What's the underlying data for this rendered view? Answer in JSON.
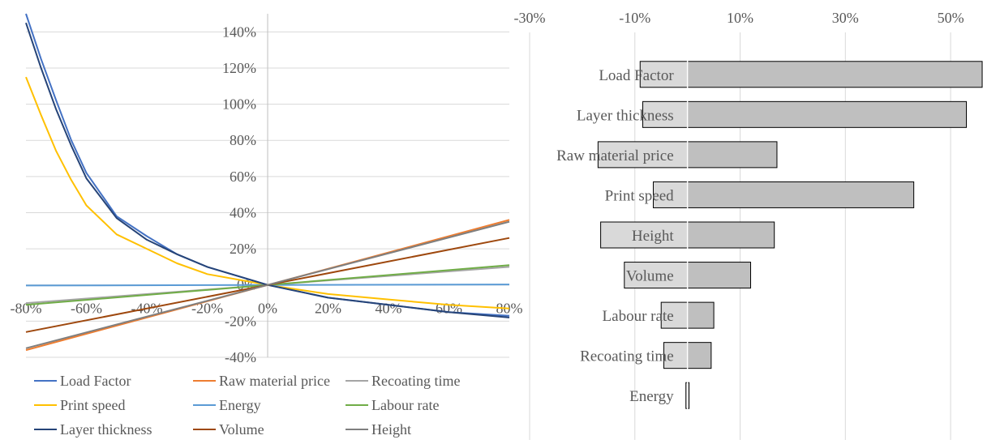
{
  "chart_data": [
    {
      "type": "line",
      "x_ticks": [
        "-80%",
        "-60%",
        "-40%",
        "-20%",
        "0%",
        "20%",
        "40%",
        "60%",
        "80%"
      ],
      "y_ticks": [
        "-40%",
        "-20%",
        "0%",
        "20%",
        "40%",
        "60%",
        "80%",
        "100%",
        "120%",
        "140%"
      ],
      "xlim": [
        -80,
        80
      ],
      "ylim": [
        -40,
        150
      ],
      "series": [
        {
          "name": "Load Factor",
          "color": "#4472C4",
          "x": [
            -80,
            -75,
            -70,
            -65,
            -60,
            -50,
            -40,
            -30,
            -20,
            -10,
            0,
            20,
            40,
            60,
            80
          ],
          "y": [
            150,
            125,
            102,
            80,
            62,
            38,
            27,
            17,
            10,
            5,
            0,
            -7,
            -11,
            -15,
            -17
          ]
        },
        {
          "name": "Raw material price",
          "color": "#ED7D31",
          "x": [
            -80,
            80
          ],
          "y": [
            -36,
            36
          ]
        },
        {
          "name": "Recoating time",
          "color": "#A5A5A5",
          "x": [
            -80,
            80
          ],
          "y": [
            -10,
            10
          ]
        },
        {
          "name": "Print speed",
          "color": "#FFC000",
          "x": [
            -80,
            -75,
            -70,
            -65,
            -60,
            -50,
            -40,
            -30,
            -20,
            -10,
            0,
            20,
            40,
            60,
            80
          ],
          "y": [
            115,
            94,
            74,
            58,
            44,
            28,
            20,
            12,
            6,
            3,
            0,
            -5,
            -8,
            -11,
            -13
          ]
        },
        {
          "name": "Energy",
          "color": "#5B9BD5",
          "x": [
            -80,
            80
          ],
          "y": [
            -0.3,
            0.3
          ]
        },
        {
          "name": "Labour rate",
          "color": "#70AD47",
          "x": [
            -80,
            80
          ],
          "y": [
            -11,
            11
          ]
        },
        {
          "name": "Layer thickness",
          "color": "#264478",
          "x": [
            -80,
            -75,
            -70,
            -65,
            -60,
            -50,
            -40,
            -30,
            -20,
            -10,
            0,
            20,
            40,
            60,
            80
          ],
          "y": [
            145,
            120,
            97,
            77,
            59,
            37,
            25,
            17,
            10,
            5,
            0,
            -7,
            -11,
            -15,
            -18
          ]
        },
        {
          "name": "Volume",
          "color": "#9E480E",
          "x": [
            -80,
            80
          ],
          "y": [
            -26,
            26
          ]
        },
        {
          "name": "Height",
          "color": "#7F7F7F",
          "x": [
            -80,
            80
          ],
          "y": [
            -35,
            35
          ]
        }
      ]
    },
    {
      "type": "bar",
      "orientation": "horizontal",
      "x_ticks": [
        "-30%",
        "-10%",
        "10%",
        "30%",
        "50%"
      ],
      "xlim": [
        -30,
        56
      ],
      "categories": [
        "Load Factor",
        "Layer thickness",
        "Raw material price",
        "Print speed",
        "Height",
        "Volume",
        "Labour rate",
        "Recoating time",
        "Energy"
      ],
      "low_values": [
        -9,
        -8.5,
        -17,
        -6.5,
        -16.5,
        -12,
        -5,
        -4.5,
        -0.3
      ],
      "high_values": [
        56,
        53,
        17,
        43,
        16.5,
        12,
        5,
        4.5,
        0.3
      ]
    }
  ]
}
